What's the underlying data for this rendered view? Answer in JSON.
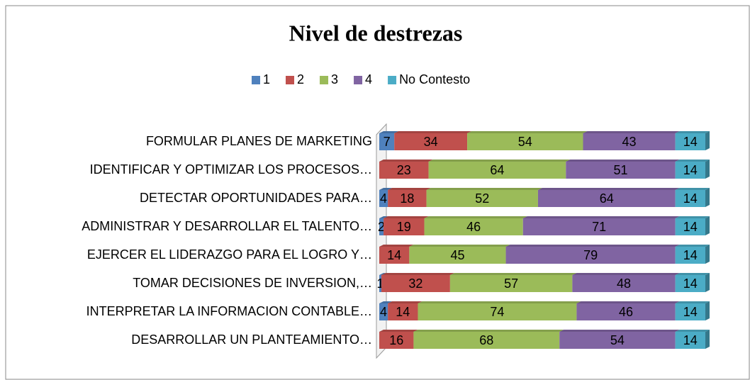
{
  "chart_data": {
    "type": "stacked_bar",
    "orientation": "horizontal",
    "title": "Nivel de destrezas",
    "categories": [
      "FORMULAR PLANES DE MARKETING",
      "IDENTIFICAR Y OPTIMIZAR LOS PROCESOS…",
      "DETECTAR OPORTUNIDADES PARA…",
      "ADMINISTRAR Y DESARROLLAR EL TALENTO…",
      "EJERCER EL LIDERAZGO PARA EL LOGRO Y…",
      "TOMAR DECISIONES DE INVERSION,…",
      "INTERPRETAR LA INFORMACION CONTABLE…",
      "DESARROLLAR UN PLANTEAMIENTO…"
    ],
    "series": [
      {
        "name": "1",
        "color": "#4f81bd",
        "values": [
          7,
          0,
          4,
          2,
          0,
          1,
          4,
          0
        ]
      },
      {
        "name": "2",
        "color": "#c0504d",
        "values": [
          34,
          23,
          18,
          19,
          14,
          32,
          14,
          16
        ]
      },
      {
        "name": "3",
        "color": "#9bbb59",
        "values": [
          54,
          64,
          52,
          46,
          45,
          57,
          74,
          68
        ]
      },
      {
        "name": "4",
        "color": "#8064a2",
        "values": [
          43,
          51,
          64,
          71,
          79,
          48,
          46,
          54
        ]
      },
      {
        "name": "No Contesto",
        "color": "#4bacc6",
        "values": [
          14,
          14,
          14,
          14,
          14,
          14,
          14,
          14
        ]
      }
    ],
    "legend": "top"
  }
}
